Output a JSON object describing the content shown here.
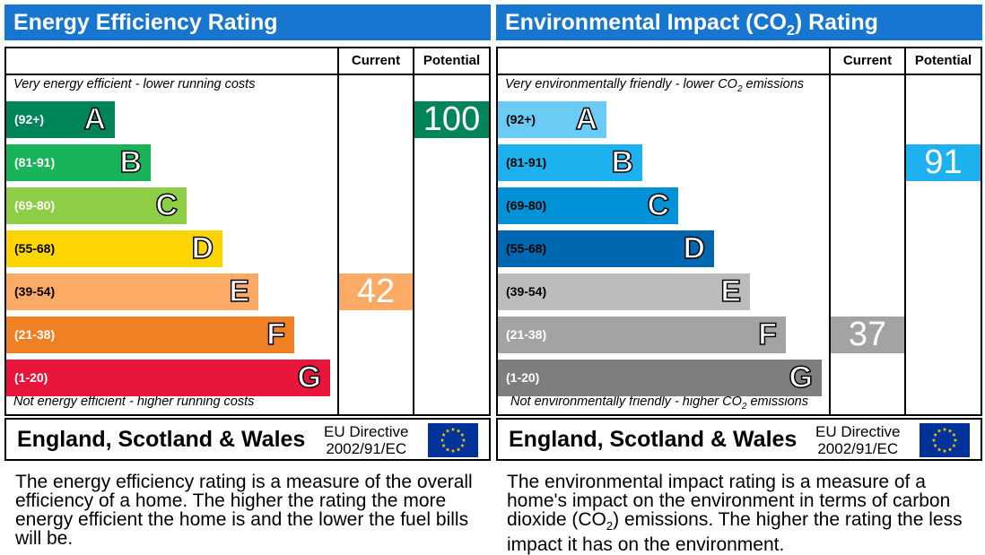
{
  "colors": {
    "header_bg": "#1777d0",
    "eff_bands": [
      "#00845a",
      "#19b459",
      "#8dce46",
      "#ffd500",
      "#fcaa65",
      "#ef8023",
      "#e9153b"
    ],
    "env_bands": [
      "#6ccbf4",
      "#1db1f0",
      "#0091d6",
      "#0068b0",
      "#bcbcbc",
      "#a3a3a3",
      "#7e7e7e"
    ]
  },
  "chart_data": [
    {
      "type": "bar",
      "title": "Energy Efficiency Rating",
      "columns": [
        "Current",
        "Potential"
      ],
      "top_caption": "Very energy efficient - lower running costs",
      "bottom_caption": "Not energy efficient - higher running costs",
      "bands": [
        {
          "range": "(92+)",
          "letter": "A"
        },
        {
          "range": "(81-91)",
          "letter": "B"
        },
        {
          "range": "(69-80)",
          "letter": "C"
        },
        {
          "range": "(55-68)",
          "letter": "D"
        },
        {
          "range": "(39-54)",
          "letter": "E"
        },
        {
          "range": "(21-38)",
          "letter": "F"
        },
        {
          "range": "(1-20)",
          "letter": "G"
        }
      ],
      "current": {
        "value": 42,
        "band": "E"
      },
      "potential": {
        "value": 100,
        "band": "A"
      }
    },
    {
      "type": "bar",
      "title_pre": "Environmental Impact (CO",
      "title_sub": "2",
      "title_post": ") Rating",
      "columns": [
        "Current",
        "Potential"
      ],
      "top_caption_pre": "Very environmentally friendly - lower CO",
      "top_caption_sub": "2",
      "top_caption_post": " emissions",
      "bottom_caption_pre": "Not environmentally friendly - higher CO",
      "bottom_caption_sub": "2",
      "bottom_caption_post": " emissions",
      "bands": [
        {
          "range": "(92+)",
          "letter": "A"
        },
        {
          "range": "(81-91)",
          "letter": "B"
        },
        {
          "range": "(69-80)",
          "letter": "C"
        },
        {
          "range": "(55-68)",
          "letter": "D"
        },
        {
          "range": "(39-54)",
          "letter": "E"
        },
        {
          "range": "(21-38)",
          "letter": "F"
        },
        {
          "range": "(1-20)",
          "letter": "G"
        }
      ],
      "current": {
        "value": 37,
        "band": "F"
      },
      "potential": {
        "value": 91,
        "band": "B"
      }
    }
  ],
  "footer": {
    "region": "England, Scotland & Wales",
    "directive_line1": "EU Directive",
    "directive_line2": "2002/91/EC",
    "flag_icon": "eu-flag-icon"
  },
  "descriptions": {
    "efficiency": "The energy efficiency rating is a measure of the overall efficiency of a home. The higher the rating the more energy efficient the home is and the lower the fuel bills will be.",
    "env_pre": "The environmental impact rating is a measure of a home's impact on the environment in terms of carbon dioxide (CO",
    "env_sub": "2",
    "env_post": ") emissions. The higher the rating the less impact it has on the environment."
  }
}
